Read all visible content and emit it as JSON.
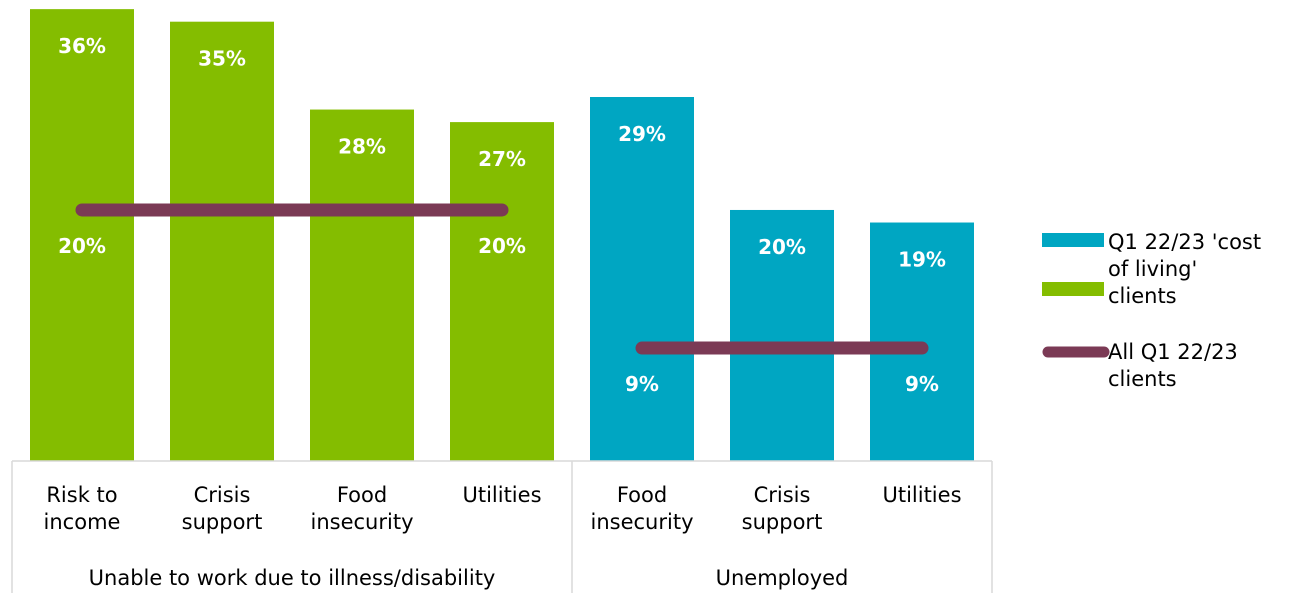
{
  "colors": {
    "cost_of_living_green": "#84bd00",
    "cost_of_living_blue": "#00a6c2",
    "all_clients_line": "#7b3a55",
    "axis_lines": "#d9d9d9"
  },
  "chart_data": {
    "type": "bar",
    "ylim": [
      0,
      40
    ],
    "groups": [
      {
        "label": "Unable to work due to illness/disability",
        "color": "#84bd00",
        "categories": [
          {
            "lines": [
              "Risk to",
              "income"
            ],
            "value": 36,
            "value_label": "36%",
            "baseline": 20,
            "baseline_label": "20%"
          },
          {
            "lines": [
              "Crisis",
              "support"
            ],
            "value": 35,
            "value_label": "35%",
            "baseline": 20,
            "baseline_label": ""
          },
          {
            "lines": [
              "Food",
              "insecurity"
            ],
            "value": 28,
            "value_label": "28%",
            "baseline": 20,
            "baseline_label": ""
          },
          {
            "lines": [
              "Utilities"
            ],
            "value": 27,
            "value_label": "27%",
            "baseline": 20,
            "baseline_label": "20%"
          }
        ]
      },
      {
        "label": "Unemployed",
        "color": "#00a6c2",
        "categories": [
          {
            "lines": [
              "Food",
              "insecurity"
            ],
            "value": 29,
            "value_label": "29%",
            "baseline": 9,
            "baseline_label": "9%"
          },
          {
            "lines": [
              "Crisis",
              "support"
            ],
            "value": 20,
            "value_label": "20%",
            "baseline": 9,
            "baseline_label": ""
          },
          {
            "lines": [
              "Utilities"
            ],
            "value": 19,
            "value_label": "19%",
            "baseline": 9,
            "baseline_label": "9%"
          }
        ]
      }
    ],
    "legend": {
      "position": "right",
      "entries": [
        {
          "type": "bar",
          "colors": [
            "#00a6c2",
            "#84bd00"
          ],
          "lines": [
            "Q1 22/23 'cost",
            "of living'",
            "clients"
          ]
        },
        {
          "type": "line",
          "color": "#7b3a55",
          "lines": [
            "All Q1 22/23",
            "clients"
          ]
        }
      ]
    }
  }
}
